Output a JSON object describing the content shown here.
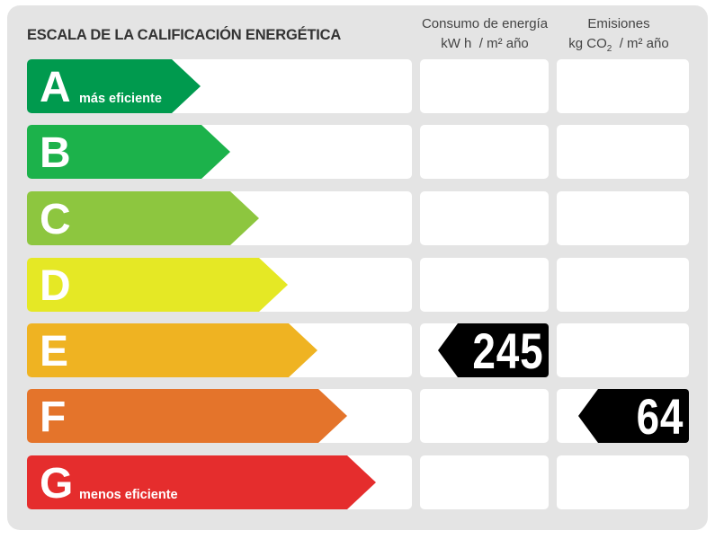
{
  "title": "ESCALA DE LA CALIFICACIÓN ENERGÉTICA",
  "columns": {
    "consumo": {
      "line1": "Consumo de energía",
      "line2": "kW h  / m² año"
    },
    "emisiones": {
      "line1": "Emisiones",
      "line2_pre": "kg CO",
      "line2_sub": "2",
      "line2_post": "  / m² año"
    }
  },
  "grades": [
    {
      "letter": "A",
      "sub": "más eficiente",
      "color": "#009a4e"
    },
    {
      "letter": "B",
      "sub": "",
      "color": "#1cb24b"
    },
    {
      "letter": "C",
      "sub": "",
      "color": "#8dc63f"
    },
    {
      "letter": "D",
      "sub": "",
      "color": "#e5e825"
    },
    {
      "letter": "E",
      "sub": "",
      "color": "#efb322"
    },
    {
      "letter": "F",
      "sub": "",
      "color": "#e4742b"
    },
    {
      "letter": "G",
      "sub": "menos eficiente",
      "color": "#e52d2d"
    }
  ],
  "consumo_value": {
    "grade": "E",
    "value": "245"
  },
  "emisiones_value": {
    "grade": "F",
    "value": "64"
  }
}
